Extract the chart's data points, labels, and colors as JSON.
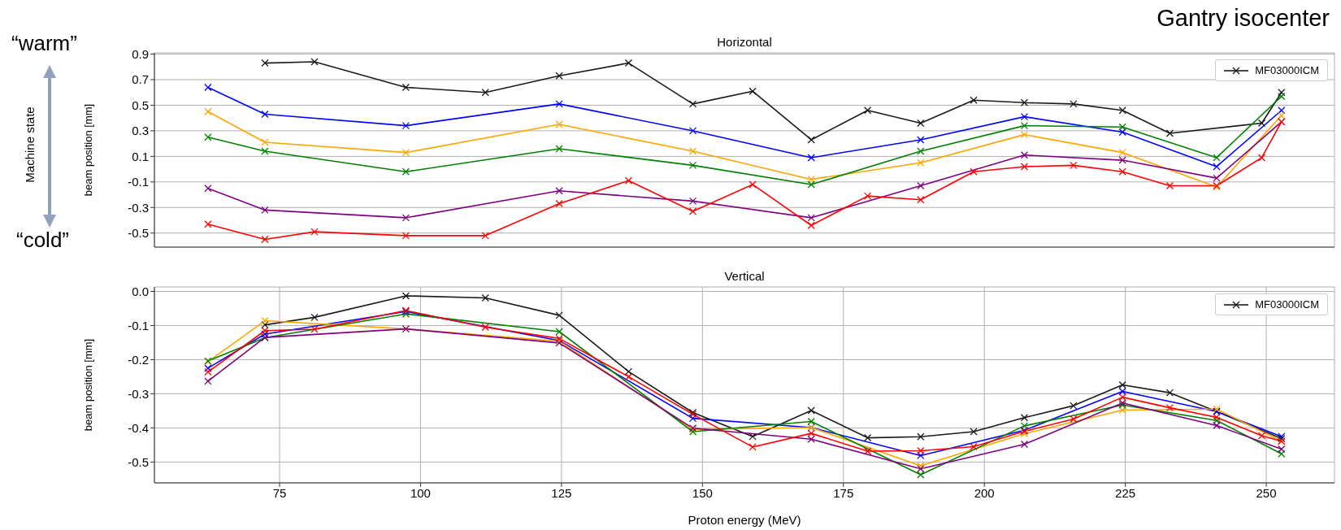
{
  "chart_data": [
    {
      "type": "line",
      "title": "Horizontal",
      "ylabel": "beam position [mm]",
      "xlim": [
        52.8,
        262.1
      ],
      "xticks": [
        75,
        100,
        125,
        150,
        175,
        200,
        225,
        250
      ],
      "ylim": [
        -0.61,
        0.91
      ],
      "yticks": [
        -0.5,
        -0.3,
        -0.1,
        0.1,
        0.3,
        0.5,
        0.7,
        0.9
      ],
      "tick_labels": "y",
      "grid": true,
      "legend": "top right",
      "marker": "cross",
      "line_style": "solid",
      "annotations": [
        "Gantry isocenter",
        "“warm”",
        "“cold”",
        "Machine state"
      ],
      "series": [
        {
          "name": "MF03000ICM",
          "color": "#1a1a1a",
          "x": [
            72.4,
            81.2,
            97.4,
            111.5,
            124.6,
            136.9,
            148.3,
            158.9,
            169.3,
            179.3,
            188.7,
            198.1,
            207.1,
            215.8,
            224.5,
            232.9,
            249.2,
            252.7
          ],
          "values": [
            0.83,
            0.84,
            0.64,
            0.6,
            0.73,
            0.83,
            0.51,
            0.61,
            0.23,
            0.46,
            0.36,
            0.54,
            0.52,
            0.51,
            0.46,
            0.28,
            0.36,
            0.6
          ]
        },
        {
          "color": "#0000ff",
          "x": [
            62.3,
            72.4,
            97.4,
            124.6,
            148.3,
            169.3,
            188.7,
            207.1,
            224.5,
            241.2,
            252.7
          ],
          "values": [
            0.64,
            0.43,
            0.34,
            0.51,
            0.3,
            0.09,
            0.23,
            0.41,
            0.29,
            0.02,
            0.46
          ]
        },
        {
          "color": "#ffa500",
          "x": [
            62.3,
            72.4,
            97.4,
            124.6,
            148.3,
            169.3,
            188.7,
            207.1,
            224.5,
            241.2,
            252.7
          ],
          "values": [
            0.45,
            0.21,
            0.13,
            0.35,
            0.14,
            -0.08,
            0.05,
            0.27,
            0.13,
            -0.14,
            0.42
          ]
        },
        {
          "color": "#008000",
          "x": [
            62.3,
            72.4,
            97.4,
            124.6,
            148.3,
            169.3,
            188.7,
            207.1,
            224.5,
            241.2,
            252.7
          ],
          "values": [
            0.25,
            0.14,
            -0.02,
            0.16,
            0.03,
            -0.12,
            0.14,
            0.34,
            0.33,
            0.09,
            0.57
          ]
        },
        {
          "color": "#800080",
          "x": [
            62.3,
            72.4,
            97.4,
            124.6,
            148.3,
            169.3,
            188.7,
            207.1,
            224.5,
            241.2,
            252.7
          ],
          "values": [
            -0.15,
            -0.32,
            -0.38,
            -0.17,
            -0.25,
            -0.38,
            -0.13,
            0.11,
            0.07,
            -0.07,
            0.37
          ]
        },
        {
          "color": "#ff0000",
          "x": [
            62.3,
            72.4,
            81.2,
            97.4,
            111.5,
            124.6,
            136.9,
            148.3,
            158.9,
            169.3,
            179.3,
            188.7,
            198.1,
            207.1,
            215.8,
            224.5,
            232.9,
            241.2,
            249.2,
            252.7
          ],
          "values": [
            -0.43,
            -0.55,
            -0.49,
            -0.52,
            -0.52,
            -0.27,
            -0.09,
            -0.33,
            -0.12,
            -0.44,
            -0.21,
            -0.24,
            -0.02,
            0.02,
            0.03,
            -0.02,
            -0.13,
            -0.13,
            0.09,
            0.37
          ]
        }
      ]
    },
    {
      "type": "line",
      "title": "Vertical",
      "xlabel": "Proton energy (MeV)",
      "ylabel": "beam position [mm]",
      "xlim": [
        52.8,
        262.1
      ],
      "xticks": [
        75,
        100,
        125,
        150,
        175,
        200,
        225,
        250
      ],
      "ylim": [
        -0.561,
        0.013
      ],
      "yticks": [
        -0.5,
        -0.4,
        -0.3,
        -0.2,
        -0.1,
        {
          "value": 0,
          "label": "0.0"
        }
      ],
      "grid": true,
      "legend": "top right",
      "marker": "cross",
      "line_style": "solid",
      "series": [
        {
          "name": "MF03000ICM",
          "color": "#1a1a1a",
          "x": [
            72.4,
            81.2,
            97.4,
            111.5,
            124.6,
            136.9,
            148.3,
            158.9,
            169.3,
            179.3,
            188.7,
            198.1,
            207.1,
            215.8,
            224.5,
            232.9,
            241.2,
            252.7
          ],
          "values": [
            -0.098,
            -0.076,
            -0.013,
            -0.019,
            -0.07,
            -0.235,
            -0.355,
            -0.425,
            -0.349,
            -0.429,
            -0.426,
            -0.411,
            -0.37,
            -0.335,
            -0.274,
            -0.297,
            -0.352,
            -0.431
          ]
        },
        {
          "color": "#0000ff",
          "x": [
            62.3,
            72.4,
            97.4,
            124.6,
            148.3,
            169.3,
            188.7,
            207.1,
            224.5,
            241.2,
            252.7
          ],
          "values": [
            -0.225,
            -0.125,
            -0.059,
            -0.144,
            -0.372,
            -0.399,
            -0.481,
            -0.407,
            -0.293,
            -0.352,
            -0.425
          ]
        },
        {
          "color": "#ffa500",
          "x": [
            62.3,
            72.4,
            97.4,
            124.6,
            148.3,
            169.3,
            188.7,
            207.1,
            224.5,
            241.2,
            252.7
          ],
          "values": [
            -0.206,
            -0.086,
            -0.11,
            -0.146,
            -0.404,
            -0.399,
            -0.511,
            -0.417,
            -0.348,
            -0.345,
            -0.439
          ]
        },
        {
          "color": "#008000",
          "x": [
            62.3,
            72.4,
            97.4,
            124.6,
            148.3,
            169.3,
            188.7,
            207.1,
            224.5,
            241.2,
            252.7
          ],
          "values": [
            -0.204,
            -0.136,
            -0.066,
            -0.118,
            -0.411,
            -0.381,
            -0.537,
            -0.394,
            -0.333,
            -0.378,
            -0.476
          ]
        },
        {
          "color": "#800080",
          "x": [
            62.3,
            72.4,
            97.4,
            124.6,
            148.3,
            169.3,
            188.7,
            207.1,
            224.5,
            241.2,
            252.7
          ],
          "values": [
            -0.263,
            -0.135,
            -0.11,
            -0.151,
            -0.401,
            -0.433,
            -0.52,
            -0.448,
            -0.327,
            -0.393,
            -0.462
          ]
        },
        {
          "color": "#ff0000",
          "x": [
            62.3,
            72.4,
            81.2,
            97.4,
            111.5,
            124.6,
            136.9,
            148.3,
            158.9,
            169.3,
            179.3,
            188.7,
            198.1,
            207.1,
            215.8,
            224.5,
            232.9,
            241.2,
            249.2,
            252.7
          ],
          "values": [
            -0.236,
            -0.115,
            -0.111,
            -0.056,
            -0.105,
            -0.138,
            -0.25,
            -0.36,
            -0.456,
            -0.416,
            -0.468,
            -0.467,
            -0.455,
            -0.41,
            -0.374,
            -0.31,
            -0.341,
            -0.369,
            -0.423,
            -0.439
          ]
        }
      ]
    }
  ]
}
